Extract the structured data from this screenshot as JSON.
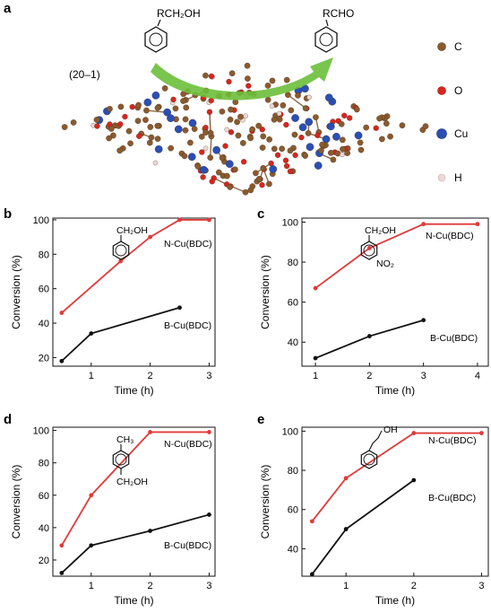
{
  "panel_a": {
    "label": "a",
    "reactant": "RCH₂OH",
    "product": "RCHO",
    "facet": "(20–1)",
    "legend": [
      {
        "symbol": "C",
        "color": "#8a5a2e"
      },
      {
        "symbol": "O",
        "color": "#d9251d"
      },
      {
        "symbol": "Cu",
        "color": "#2a4fb5"
      },
      {
        "symbol": "H",
        "color": "#efd8d8"
      }
    ]
  },
  "colors": {
    "ncu": "#e03a3a",
    "bcu": "#111111",
    "arrow": "#6bbf3a"
  },
  "chart_data": [
    {
      "panel": "b",
      "type": "line",
      "substrate": [
        "CH₂OH"
      ],
      "xlabel": "Time (h)",
      "ylabel": "Conversion (%)",
      "xlim": [
        0.35,
        3.1
      ],
      "ylim": [
        15,
        101
      ],
      "xticks": [
        1,
        2,
        3
      ],
      "yticks": [
        20,
        40,
        60,
        80,
        100
      ],
      "series": [
        {
          "name": "N-Cu(BDC)",
          "x": [
            0.5,
            1.5,
            2,
            2.5,
            3
          ],
          "y": [
            46,
            76,
            90,
            100,
            100
          ]
        },
        {
          "name": "B-Cu(BDC)",
          "x": [
            0.5,
            1,
            2.5
          ],
          "y": [
            18,
            34,
            49
          ]
        }
      ]
    },
    {
      "panel": "c",
      "type": "line",
      "substrate": [
        "CH₂OH",
        "NO₂"
      ],
      "xlabel": "Time (h)",
      "ylabel": "Conversion (%)",
      "xlim": [
        0.75,
        4.2
      ],
      "ylim": [
        28,
        102
      ],
      "xticks": [
        1,
        2,
        3,
        4
      ],
      "yticks": [
        40,
        60,
        80,
        100
      ],
      "series": [
        {
          "name": "N-Cu(BDC)",
          "x": [
            1,
            2,
            3,
            4
          ],
          "y": [
            67,
            87,
            99,
            99
          ]
        },
        {
          "name": "B-Cu(BDC)",
          "x": [
            1,
            2,
            3
          ],
          "y": [
            32,
            43,
            51
          ]
        }
      ]
    },
    {
      "panel": "d",
      "type": "line",
      "substrate": [
        "CH₃",
        "CH₂OH"
      ],
      "xlabel": "Time (h)",
      "ylabel": "Conversion (%)",
      "xlim": [
        0.35,
        3.1
      ],
      "ylim": [
        10,
        102
      ],
      "xticks": [
        1,
        2,
        3
      ],
      "yticks": [
        20,
        40,
        60,
        80,
        100
      ],
      "series": [
        {
          "name": "N-Cu(BDC)",
          "x": [
            0.5,
            1,
            2,
            3
          ],
          "y": [
            29,
            60,
            99,
            99
          ]
        },
        {
          "name": "B-Cu(BDC)",
          "x": [
            0.5,
            1,
            2,
            3
          ],
          "y": [
            12,
            29,
            38,
            48
          ]
        }
      ]
    },
    {
      "panel": "e",
      "type": "line",
      "substrate": [
        "OH"
      ],
      "xlabel": "Time (h)",
      "ylabel": "Conversion (%)",
      "xlim": [
        0.35,
        3.1
      ],
      "ylim": [
        26,
        102
      ],
      "xticks": [
        1,
        2,
        3
      ],
      "yticks": [
        40,
        60,
        80,
        100
      ],
      "series": [
        {
          "name": "N-Cu(BDC)",
          "x": [
            0.5,
            1,
            2,
            3
          ],
          "y": [
            54,
            76,
            99,
            99
          ]
        },
        {
          "name": "B-Cu(BDC)",
          "x": [
            0.5,
            1,
            2
          ],
          "y": [
            27,
            50,
            75
          ]
        }
      ]
    }
  ]
}
